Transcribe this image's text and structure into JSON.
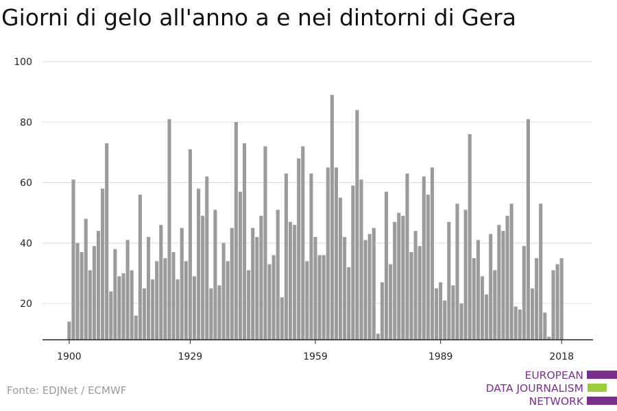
{
  "chart_data": {
    "type": "bar",
    "title": "Giorni di gelo all'anno a e nei dintorni di Gera",
    "xlabel": "",
    "ylabel": "",
    "x_start": 1900,
    "x_ticks": [
      "1900",
      "1929",
      "1959",
      "1989",
      "2018"
    ],
    "y_ticks": [
      "20",
      "40",
      "60",
      "80",
      "100"
    ],
    "ylim": [
      8,
      100
    ],
    "grid": true,
    "bar_color": "#9b9b9b",
    "values": [
      14,
      61,
      40,
      37,
      48,
      31,
      39,
      44,
      58,
      73,
      24,
      38,
      29,
      30,
      41,
      31,
      16,
      56,
      25,
      42,
      28,
      34,
      46,
      35,
      81,
      37,
      28,
      45,
      34,
      71,
      29,
      58,
      49,
      62,
      25,
      51,
      26,
      40,
      34,
      45,
      80,
      57,
      73,
      31,
      45,
      42,
      49,
      72,
      33,
      36,
      51,
      22,
      63,
      47,
      46,
      68,
      72,
      34,
      63,
      42,
      36,
      36,
      65,
      89,
      65,
      55,
      42,
      32,
      59,
      84,
      61,
      41,
      43,
      45,
      10,
      27,
      57,
      33,
      47,
      50,
      49,
      63,
      37,
      44,
      39,
      62,
      56,
      65,
      25,
      27,
      21,
      47,
      26,
      53,
      20,
      51,
      76,
      35,
      41,
      29,
      23,
      43,
      31,
      46,
      44,
      49,
      53,
      19,
      18,
      39,
      81,
      25,
      35,
      53,
      17,
      9,
      31,
      33,
      35
    ]
  },
  "source": "Fonte: EDJNet / ECMWF",
  "logo": {
    "lines": [
      "EUROPEAN",
      "DATA JOURNALISM",
      "NETWORK"
    ],
    "colors": [
      "#7b2e8c",
      "#9ccc3c",
      "#7b2e8c"
    ]
  }
}
